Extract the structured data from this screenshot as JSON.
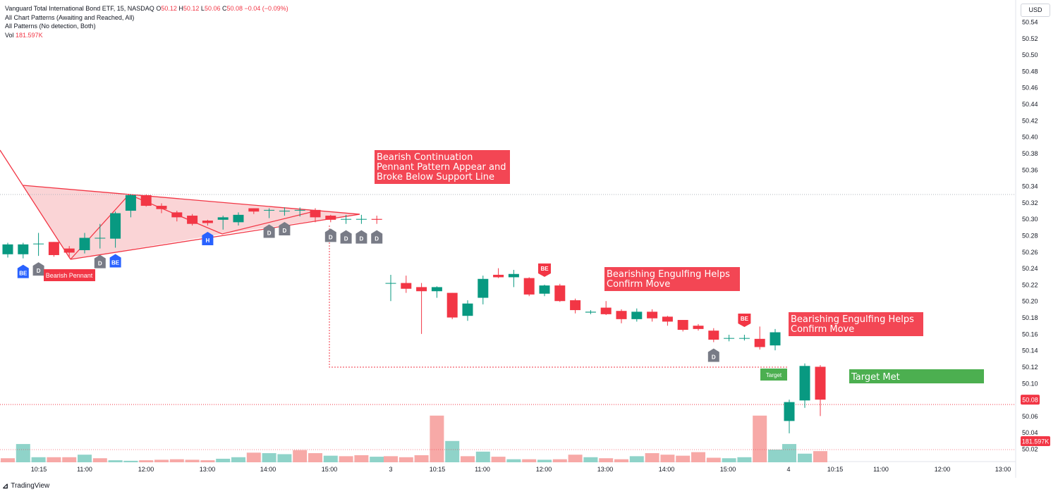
{
  "legend": {
    "title": "Vanguard Total International Bond ETF, 15, NASDAQ",
    "o_label": "O",
    "o_val": "50.12",
    "h_label": "H",
    "h_val": "50.12",
    "l_label": "L",
    "l_val": "50.06",
    "c_label": "C",
    "c_val": "50.08",
    "change": "−0.04 (−0.09%)",
    "line2": "All Chart Patterns (Awaiting and Reached, All)",
    "line3": "All Patterns (No detection, Both)",
    "vol_label": "Vol",
    "vol_val": "181.597K"
  },
  "currency": "USD",
  "brand": "TradingView",
  "colors": {
    "up": "#089981",
    "down": "#f23645",
    "up_vol": "#8fd3c9",
    "down_vol": "#f7a9a7",
    "pattern_fill": "#f8c5c8",
    "blue": "#2962ff",
    "gray": "#787b86",
    "green_label": "#4caf50"
  },
  "chart_data": {
    "type": "candlestick",
    "y_axis": {
      "min": 50.0,
      "max": 50.56,
      "ticks": [
        "50.54",
        "50.52",
        "50.50",
        "50.48",
        "50.46",
        "50.44",
        "50.42",
        "50.40",
        "50.38",
        "50.36",
        "50.34",
        "50.32",
        "50.30",
        "50.28",
        "50.26",
        "50.24",
        "50.22",
        "50.20",
        "50.18",
        "50.16",
        "50.14",
        "50.12",
        "50.10",
        "50.08",
        "50.06",
        "50.04",
        "50.02"
      ]
    },
    "x_ticks": [
      "10:15",
      "11:00",
      "12:00",
      "13:00",
      "14:00",
      "15:00",
      "3",
      "10:15",
      "11:00",
      "12:00",
      "13:00",
      "14:00",
      "15:00",
      "4",
      "10:15",
      "11:00",
      "12:00",
      "13:00"
    ],
    "last_price": "50.08",
    "last_volume": "181.597K",
    "candles": [
      {
        "o": 50.257,
        "h": 50.271,
        "l": 50.253,
        "c": 50.269
      },
      {
        "o": 50.257,
        "h": 50.271,
        "l": 50.252,
        "c": 50.269
      },
      {
        "o": 50.27,
        "h": 50.283,
        "l": 50.255,
        "c": 50.27
      },
      {
        "o": 50.272,
        "h": 50.272,
        "l": 50.254,
        "c": 50.256
      },
      {
        "o": 50.264,
        "h": 50.267,
        "l": 50.254,
        "c": 50.259
      },
      {
        "o": 50.262,
        "h": 50.283,
        "l": 50.258,
        "c": 50.277
      },
      {
        "o": 50.277,
        "h": 50.294,
        "l": 50.264,
        "c": 50.277
      },
      {
        "o": 50.276,
        "h": 50.309,
        "l": 50.265,
        "c": 50.307
      },
      {
        "o": 50.31,
        "h": 50.33,
        "l": 50.302,
        "c": 50.329
      },
      {
        "o": 50.329,
        "h": 50.33,
        "l": 50.315,
        "c": 50.316
      },
      {
        "o": 50.316,
        "h": 50.319,
        "l": 50.307,
        "c": 50.312
      },
      {
        "o": 50.308,
        "h": 50.31,
        "l": 50.297,
        "c": 50.302
      },
      {
        "o": 50.304,
        "h": 50.306,
        "l": 50.292,
        "c": 50.294
      },
      {
        "o": 50.298,
        "h": 50.299,
        "l": 50.292,
        "c": 50.295
      },
      {
        "o": 50.299,
        "h": 50.304,
        "l": 50.287,
        "c": 50.302
      },
      {
        "o": 50.296,
        "h": 50.308,
        "l": 50.292,
        "c": 50.305
      },
      {
        "o": 50.313,
        "h": 50.313,
        "l": 50.306,
        "c": 50.309
      },
      {
        "o": 50.311,
        "h": 50.313,
        "l": 50.301,
        "c": 50.311
      },
      {
        "o": 50.31,
        "h": 50.314,
        "l": 50.304,
        "c": 50.31
      },
      {
        "o": 50.311,
        "h": 50.314,
        "l": 50.303,
        "c": 50.311
      },
      {
        "o": 50.311,
        "h": 50.313,
        "l": 50.296,
        "c": 50.302
      },
      {
        "o": 50.304,
        "h": 50.305,
        "l": 50.296,
        "c": 50.299
      },
      {
        "o": 50.3,
        "h": 50.305,
        "l": 50.294,
        "c": 50.3
      },
      {
        "o": 50.3,
        "h": 50.305,
        "l": 50.294,
        "c": 50.3
      },
      {
        "o": 50.3,
        "h": 50.304,
        "l": 50.294,
        "c": 50.299
      },
      {
        "o": 50.222,
        "h": 50.232,
        "l": 50.2,
        "c": 50.222
      },
      {
        "o": 50.222,
        "h": 50.231,
        "l": 50.21,
        "c": 50.215
      },
      {
        "o": 50.217,
        "h": 50.222,
        "l": 50.16,
        "c": 50.212
      },
      {
        "o": 50.212,
        "h": 50.218,
        "l": 50.204,
        "c": 50.217
      },
      {
        "o": 50.21,
        "h": 50.21,
        "l": 50.178,
        "c": 50.18
      },
      {
        "o": 50.182,
        "h": 50.201,
        "l": 50.176,
        "c": 50.197
      },
      {
        "o": 50.204,
        "h": 50.231,
        "l": 50.196,
        "c": 50.227
      },
      {
        "o": 50.232,
        "h": 50.24,
        "l": 50.228,
        "c": 50.229
      },
      {
        "o": 50.229,
        "h": 50.238,
        "l": 50.217,
        "c": 50.233
      },
      {
        "o": 50.228,
        "h": 50.229,
        "l": 50.206,
        "c": 50.208
      },
      {
        "o": 50.209,
        "h": 50.22,
        "l": 50.206,
        "c": 50.219
      },
      {
        "o": 50.219,
        "h": 50.221,
        "l": 50.199,
        "c": 50.2
      },
      {
        "o": 50.201,
        "h": 50.203,
        "l": 50.185,
        "c": 50.189
      },
      {
        "o": 50.186,
        "h": 50.189,
        "l": 50.184,
        "c": 50.187
      },
      {
        "o": 50.192,
        "h": 50.2,
        "l": 50.183,
        "c": 50.184
      },
      {
        "o": 50.188,
        "h": 50.19,
        "l": 50.173,
        "c": 50.178
      },
      {
        "o": 50.178,
        "h": 50.191,
        "l": 50.175,
        "c": 50.187
      },
      {
        "o": 50.187,
        "h": 50.19,
        "l": 50.175,
        "c": 50.179
      },
      {
        "o": 50.181,
        "h": 50.182,
        "l": 50.17,
        "c": 50.175
      },
      {
        "o": 50.177,
        "h": 50.177,
        "l": 50.163,
        "c": 50.165
      },
      {
        "o": 50.17,
        "h": 50.172,
        "l": 50.164,
        "c": 50.166
      },
      {
        "o": 50.164,
        "h": 50.167,
        "l": 50.15,
        "c": 50.153
      },
      {
        "o": 50.155,
        "h": 50.159,
        "l": 50.151,
        "c": 50.155
      },
      {
        "o": 50.155,
        "h": 50.159,
        "l": 50.152,
        "c": 50.155
      },
      {
        "o": 50.154,
        "h": 50.169,
        "l": 50.141,
        "c": 50.144
      },
      {
        "o": 50.146,
        "h": 50.166,
        "l": 50.14,
        "c": 50.162
      },
      {
        "o": 50.054,
        "h": 50.08,
        "l": 50.039,
        "c": 50.077
      },
      {
        "o": 50.079,
        "h": 50.124,
        "l": 50.07,
        "c": 50.121
      },
      {
        "o": 50.12,
        "h": 50.122,
        "l": 50.06,
        "c": 50.08
      }
    ],
    "volume_max": 100,
    "volumes": [
      8,
      36,
      10,
      10,
      10,
      15,
      8,
      4,
      3,
      4,
      5,
      6,
      5,
      4,
      7,
      10,
      19,
      18,
      16,
      24,
      18,
      13,
      12,
      14,
      11,
      12,
      10,
      14,
      92,
      42,
      12,
      21,
      11,
      6,
      6,
      5,
      6,
      15,
      10,
      8,
      6,
      12,
      18,
      15,
      13,
      20,
      9,
      8,
      10,
      92,
      25,
      36,
      17,
      22
    ],
    "volume_up": [
      false,
      true,
      true,
      false,
      false,
      true,
      false,
      true,
      true,
      false,
      false,
      false,
      false,
      false,
      true,
      true,
      false,
      true,
      true,
      false,
      false,
      true,
      false,
      false,
      true,
      false,
      false,
      false,
      false,
      true,
      false,
      true,
      false,
      true,
      false,
      true,
      false,
      false,
      true,
      false,
      false,
      true,
      false,
      false,
      false,
      false,
      false,
      true,
      true,
      false,
      true,
      true,
      true,
      false
    ],
    "signals": [
      {
        "label": "BE",
        "type": "blue",
        "bar": 1,
        "below": true
      },
      {
        "label": "D",
        "type": "gray",
        "bar": 2,
        "below": true
      },
      {
        "label": "D",
        "type": "gray",
        "bar": 6,
        "below": true
      },
      {
        "label": "BE",
        "type": "blue",
        "bar": 7,
        "below": true
      },
      {
        "label": "H",
        "type": "blue",
        "bar": 13,
        "below": true
      },
      {
        "label": "D",
        "type": "gray",
        "bar": 17,
        "below": true
      },
      {
        "label": "D",
        "type": "gray",
        "bar": 18,
        "below": true
      },
      {
        "label": "D",
        "type": "gray",
        "bar": 21,
        "below": true
      },
      {
        "label": "D",
        "type": "gray",
        "bar": 22,
        "below": true
      },
      {
        "label": "D",
        "type": "gray",
        "bar": 23,
        "below": true
      },
      {
        "label": "D",
        "type": "gray",
        "bar": 24,
        "below": true
      },
      {
        "label": "BE",
        "type": "red",
        "bar": 35,
        "below": false
      },
      {
        "label": "D",
        "type": "gray",
        "bar": 46,
        "below": true
      },
      {
        "label": "BE",
        "type": "red",
        "bar": 48,
        "below": false
      }
    ],
    "annotations": {
      "pennant_tag": "Bearish Pennant",
      "note1": [
        "Bearish Continuation",
        "Pennant Pattern Appear and",
        "Broke Below Support Line"
      ],
      "note2": [
        "Bearishing Engulfing Helps",
        "Confirm Move"
      ],
      "note3": [
        "Bearishing Engulfing Helps",
        "Confirm Move"
      ],
      "target_tag": "Target",
      "target_met": "Target Met"
    }
  }
}
